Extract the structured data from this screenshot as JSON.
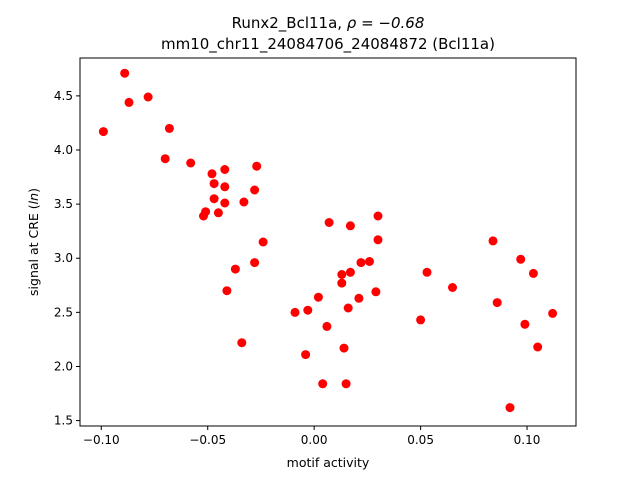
{
  "chart_data": {
    "type": "scatter",
    "title_line1_prefix": "Runx2_Bcl11a, ",
    "title_line1_rho": "ρ = −0.68",
    "title_line2": "mm10_chr11_24084706_24084872 (Bcl11a)",
    "xlabel": "motif activity",
    "ylabel_prefix": "signal at CRE (",
    "ylabel_italic": "ln",
    "ylabel_suffix": ")",
    "xlim": [
      -0.11,
      0.123
    ],
    "ylim": [
      1.45,
      4.85
    ],
    "xticks": [
      -0.1,
      -0.05,
      0.0,
      0.05,
      0.1
    ],
    "xtick_labels": [
      "−0.10",
      "−0.05",
      "0.00",
      "0.05",
      "0.10"
    ],
    "yticks": [
      1.5,
      2.0,
      2.5,
      3.0,
      3.5,
      4.0,
      4.5
    ],
    "ytick_labels": [
      "1.5",
      "2.0",
      "2.5",
      "3.0",
      "3.5",
      "4.0",
      "4.5"
    ],
    "marker_color": "#ff0000",
    "grid": false,
    "points": [
      {
        "x": -0.099,
        "y": 4.17
      },
      {
        "x": -0.089,
        "y": 4.71
      },
      {
        "x": -0.087,
        "y": 4.44
      },
      {
        "x": -0.078,
        "y": 4.49
      },
      {
        "x": -0.068,
        "y": 4.2
      },
      {
        "x": -0.07,
        "y": 3.92
      },
      {
        "x": -0.058,
        "y": 3.88
      },
      {
        "x": -0.048,
        "y": 3.78
      },
      {
        "x": -0.047,
        "y": 3.69
      },
      {
        "x": -0.042,
        "y": 3.82
      },
      {
        "x": -0.042,
        "y": 3.66
      },
      {
        "x": -0.027,
        "y": 3.85
      },
      {
        "x": -0.028,
        "y": 3.63
      },
      {
        "x": -0.047,
        "y": 3.55
      },
      {
        "x": -0.042,
        "y": 3.51
      },
      {
        "x": -0.033,
        "y": 3.52
      },
      {
        "x": -0.051,
        "y": 3.43
      },
      {
        "x": -0.052,
        "y": 3.39
      },
      {
        "x": -0.045,
        "y": 3.42
      },
      {
        "x": -0.024,
        "y": 3.15
      },
      {
        "x": -0.028,
        "y": 2.96
      },
      {
        "x": -0.037,
        "y": 2.9
      },
      {
        "x": -0.041,
        "y": 2.7
      },
      {
        "x": -0.034,
        "y": 2.22
      },
      {
        "x": 0.007,
        "y": 3.33
      },
      {
        "x": 0.017,
        "y": 3.3
      },
      {
        "x": 0.03,
        "y": 3.39
      },
      {
        "x": 0.03,
        "y": 3.17
      },
      {
        "x": 0.022,
        "y": 2.96
      },
      {
        "x": 0.026,
        "y": 2.97
      },
      {
        "x": 0.017,
        "y": 2.87
      },
      {
        "x": 0.013,
        "y": 2.85
      },
      {
        "x": 0.013,
        "y": 2.77
      },
      {
        "x": 0.029,
        "y": 2.69
      },
      {
        "x": 0.021,
        "y": 2.63
      },
      {
        "x": 0.016,
        "y": 2.54
      },
      {
        "x": 0.002,
        "y": 2.64
      },
      {
        "x": -0.009,
        "y": 2.5
      },
      {
        "x": -0.003,
        "y": 2.52
      },
      {
        "x": 0.006,
        "y": 2.37
      },
      {
        "x": 0.014,
        "y": 2.17
      },
      {
        "x": -0.004,
        "y": 2.11
      },
      {
        "x": 0.004,
        "y": 1.84
      },
      {
        "x": 0.015,
        "y": 1.84
      },
      {
        "x": 0.053,
        "y": 2.87
      },
      {
        "x": 0.05,
        "y": 2.43
      },
      {
        "x": 0.065,
        "y": 2.73
      },
      {
        "x": 0.084,
        "y": 3.16
      },
      {
        "x": 0.086,
        "y": 2.59
      },
      {
        "x": 0.097,
        "y": 2.99
      },
      {
        "x": 0.103,
        "y": 2.86
      },
      {
        "x": 0.099,
        "y": 2.39
      },
      {
        "x": 0.105,
        "y": 2.18
      },
      {
        "x": 0.112,
        "y": 2.49
      },
      {
        "x": 0.092,
        "y": 1.62
      }
    ]
  }
}
